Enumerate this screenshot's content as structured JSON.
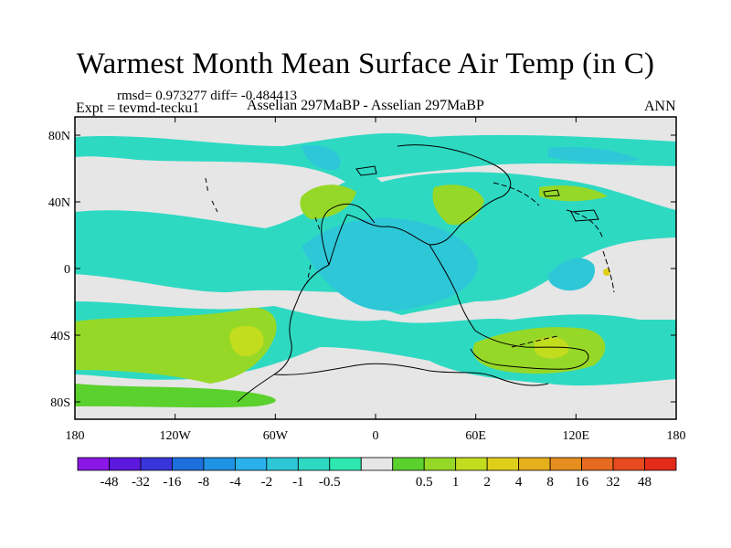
{
  "title": "Warmest Month Mean Surface Air Temp (in C)",
  "stats": "rmsd= 0.973277 diff= -0.484413",
  "expt": "Expt = tevmd-tecku1",
  "experiment_label": "Asselian 297MaBP - Asselian 297MaBP",
  "period": "ANN",
  "map": {
    "x_ticks": [
      "180",
      "120W",
      "60W",
      "0",
      "60E",
      "120E",
      "180"
    ],
    "y_ticks": [
      "80N",
      "40N",
      "0",
      "40S",
      "80S"
    ],
    "background_color": "#e6e6e6"
  },
  "colorbar": {
    "colors": [
      "#8a17e6",
      "#5a19dc",
      "#3a35da",
      "#1c6fdc",
      "#1f93e4",
      "#2ab1ea",
      "#2ec7d8",
      "#2ed9c2",
      "#2ee8b0",
      "#e6e6e6",
      "#5ad12d",
      "#96d827",
      "#c2dc1e",
      "#e0cf1a",
      "#e6b01d",
      "#e68e1f",
      "#e66a20",
      "#e64a1e",
      "#e42b19"
    ],
    "labels": [
      "-48",
      "-32",
      "-16",
      "-8",
      "-4",
      "-2",
      "-1",
      "-0.5",
      "0.5",
      "1",
      "2",
      "4",
      "8",
      "16",
      "32",
      "48"
    ]
  }
}
